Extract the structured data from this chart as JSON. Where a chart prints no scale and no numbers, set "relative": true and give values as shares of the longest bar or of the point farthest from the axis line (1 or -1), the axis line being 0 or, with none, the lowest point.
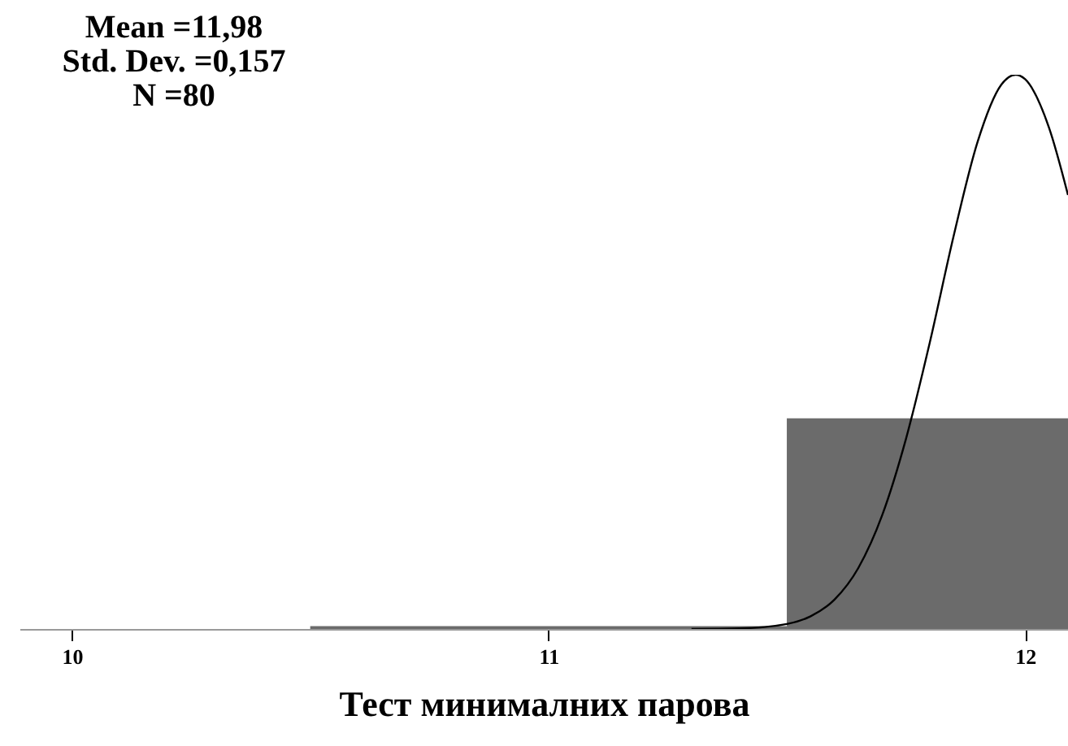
{
  "chart_data": {
    "type": "histogram",
    "relative": true,
    "xlabel": "Тест минималних парова",
    "annotations": [
      "Mean =11,98",
      "Std. Dev. =0,157",
      "N =80"
    ],
    "bins": [
      10.5,
      11.5,
      12.09
    ],
    "values": [
      0.005,
      0.38
    ],
    "color": "#6b6b6b",
    "series": [
      {
        "type": "line",
        "color": "#000000",
        "x": [
          11.3,
          11.4,
          11.5,
          11.55,
          11.6,
          11.65,
          11.7,
          11.75,
          11.8,
          11.85,
          11.9,
          11.95,
          11.98,
          12.0,
          12.05,
          12.09
        ],
        "values": [
          0.0,
          0.001,
          0.009,
          0.023,
          0.053,
          0.11,
          0.205,
          0.343,
          0.517,
          0.709,
          0.878,
          0.982,
          1.0,
          0.992,
          0.905,
          0.783
        ]
      }
    ],
    "xlim": [
      9.89,
      12.09
    ],
    "xticks": [
      10,
      11,
      12
    ],
    "grid": false
  }
}
